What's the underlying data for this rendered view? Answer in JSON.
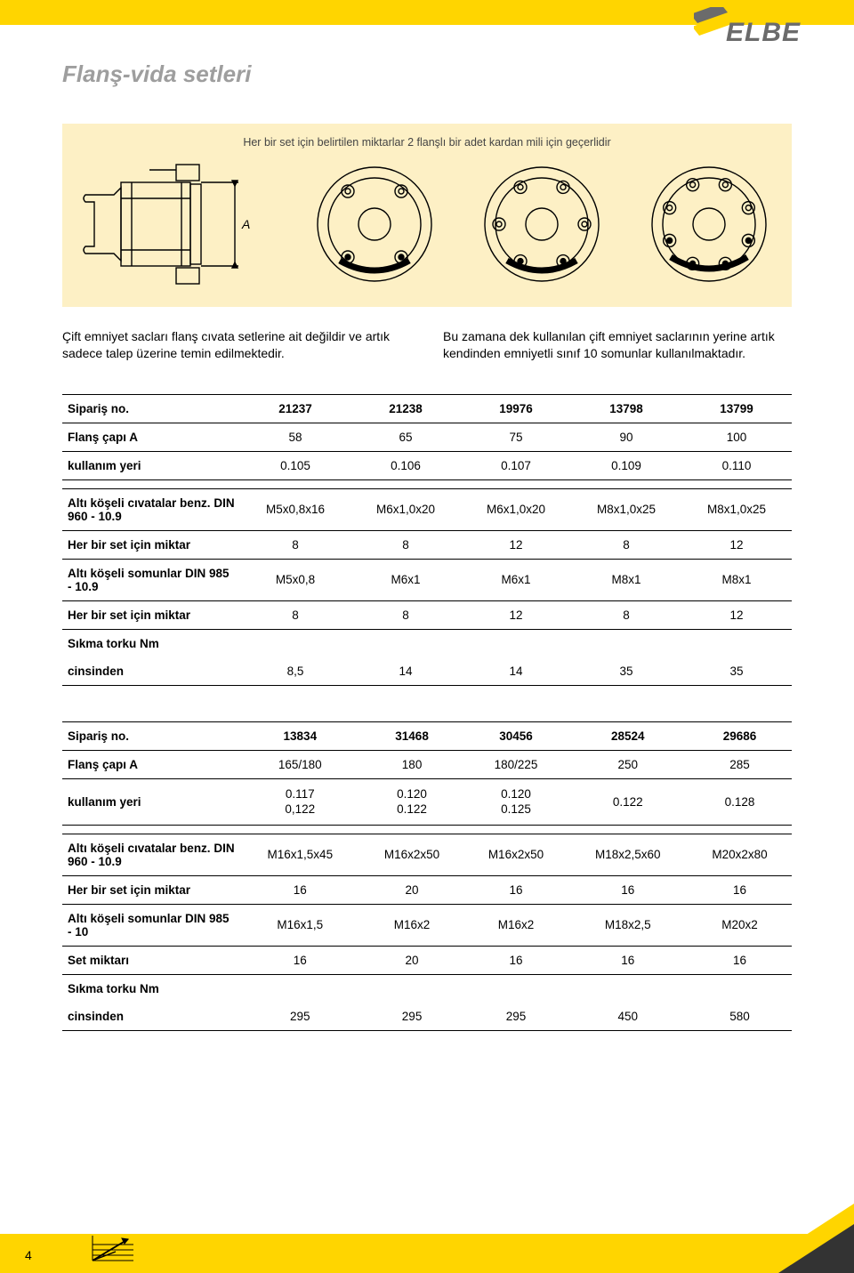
{
  "brand": {
    "name": "ELBE"
  },
  "title": "Flanş-vida setleri",
  "diagramCaption": "Her bir set için belirtilen miktarlar 2 flanşlı bir adet kardan mili için geçerlidir",
  "dimensionLabel": "A",
  "bodyLeft": "Çift emniyet sacları flanş cıvata setlerine ait değildir ve artık sadece talep üzerine temin edilmektedir.",
  "bodyRight": "Bu zamana dek kullanılan çift emniyet saclarının yerine artık kendinden emniyetli sınıf 10 somunlar kullanıl­maktadır.",
  "labels": {
    "orderNo": "Sipariş no.",
    "flangeDia": "Flanş çapı A",
    "usage": "kullanım yeri",
    "hexBolts": "Altı köşeli cıvatalar benz. DIN 960 - 10.9",
    "qtyPerSet": "Her bir set için miktar",
    "hexNuts1": "Altı köşeli somunlar DIN 985 - 10.9",
    "hexNuts2": "Altı köşeli somunlar DIN 985 - 10",
    "torque": "Sıkma torku Nm",
    "inUnit": "cinsinden",
    "setQty": "Set miktarı"
  },
  "table1": {
    "orderNo": [
      "21237",
      "21238",
      "19976",
      "13798",
      "13799"
    ],
    "flangeDia": [
      "58",
      "65",
      "75",
      "90",
      "100"
    ],
    "usage": [
      "0.105",
      "0.106",
      "0.107",
      "0.109",
      "0.110"
    ],
    "hexBolts": [
      "M5x0,8x16",
      "M6x1,0x20",
      "M6x1,0x20",
      "M8x1,0x25",
      "M8x1,0x25"
    ],
    "qty1": [
      "8",
      "8",
      "12",
      "8",
      "12"
    ],
    "hexNuts": [
      "M5x0,8",
      "M6x1",
      "M6x1",
      "M8x1",
      "M8x1"
    ],
    "qty2": [
      "8",
      "8",
      "12",
      "8",
      "12"
    ],
    "torque": [
      "8,5",
      "14",
      "14",
      "35",
      "35"
    ]
  },
  "table2": {
    "orderNo": [
      "13834",
      "31468",
      "30456",
      "28524",
      "29686"
    ],
    "flangeDia": [
      "165/180",
      "180",
      "180/225",
      "250",
      "285"
    ],
    "usageR1": [
      "0.117",
      "0.120",
      "0.120",
      "",
      ""
    ],
    "usageR2": [
      "0,122",
      "0.122",
      "0.125",
      "0.122",
      "0.128"
    ],
    "hexBolts": [
      "M16x1,5x45",
      "M16x2x50",
      "M16x2x50",
      "M18x2,5x60",
      "M20x2x80"
    ],
    "qty1": [
      "16",
      "20",
      "16",
      "16",
      "16"
    ],
    "hexNuts": [
      "M16x1,5",
      "M16x2",
      "M16x2",
      "M18x2,5",
      "M20x2"
    ],
    "setQty": [
      "16",
      "20",
      "16",
      "16",
      "16"
    ],
    "torque": [
      "295",
      "295",
      "295",
      "450",
      "580"
    ]
  },
  "pageNumber": "4",
  "colors": {
    "accent": "#ffd500",
    "panelBg": "#fdf0c5",
    "titleGrey": "#9e9e9e",
    "logoGrey": "#6b6b6b",
    "dark": "#333333"
  }
}
